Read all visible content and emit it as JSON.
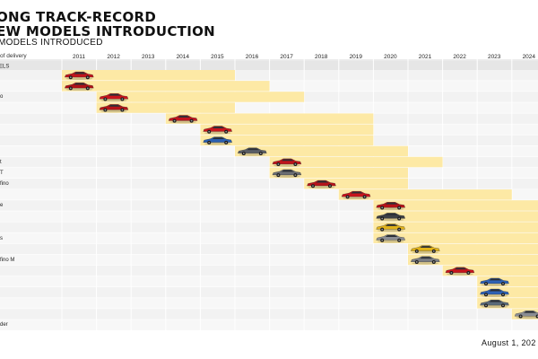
{
  "header": {
    "title_line1": "ONG TRACK-RECORD",
    "title_line2": "EW MODELS INTRODUCTION",
    "subtitle": "MODELS INTRODUCED",
    "delivery_label": "of delivery"
  },
  "years": [
    "2011",
    "2012",
    "2013",
    "2014",
    "2015",
    "2016",
    "2017",
    "2018",
    "2019",
    "2020",
    "2021",
    "2022",
    "2023",
    "2024"
  ],
  "section_label": "ELS",
  "rows": [
    {
      "label": "",
      "start": 2011,
      "end": 2015
    },
    {
      "label": "",
      "start": 2011,
      "end": 2016
    },
    {
      "label": "o",
      "start": 2012,
      "end": 2017
    },
    {
      "label": "",
      "start": 2012,
      "end": 2015
    },
    {
      "label": "",
      "start": 2014,
      "end": 2019
    },
    {
      "label": "",
      "start": 2015,
      "end": 2019
    },
    {
      "label": "",
      "start": 2015,
      "end": 2019
    },
    {
      "label": "",
      "start": 2016,
      "end": 2020
    },
    {
      "label": "t",
      "start": 2017,
      "end": 2021
    },
    {
      "label": "T",
      "start": 2017,
      "end": 2020
    },
    {
      "label": "fino",
      "start": 2018,
      "end": 2020
    },
    {
      "label": "",
      "start": 2019,
      "end": 2023
    },
    {
      "label": "e",
      "start": 2020,
      "end": 2024
    },
    {
      "label": "",
      "start": 2020,
      "end": 2024
    },
    {
      "label": "",
      "start": 2020,
      "end": 2024
    },
    {
      "label": "s",
      "start": 2020,
      "end": 2024
    },
    {
      "label": "",
      "start": 2021,
      "end": 2024
    },
    {
      "label": "fino M",
      "start": 2021,
      "end": 2024
    },
    {
      "label": "",
      "start": 2022,
      "end": 2024
    },
    {
      "label": "",
      "start": 2023,
      "end": 2024
    },
    {
      "label": "",
      "start": 2023,
      "end": 2024
    },
    {
      "label": "",
      "start": 2023,
      "end": 2024
    },
    {
      "label": "",
      "start": 2024,
      "end": 2024
    },
    {
      "label": "der",
      "start": null,
      "end": null
    }
  ],
  "cars": [
    {
      "row": 0,
      "year": 2011,
      "color": "#c0141c"
    },
    {
      "row": 1,
      "year": 2011,
      "color": "#b01218"
    },
    {
      "row": 2,
      "year": 2012,
      "color": "#c8151d"
    },
    {
      "row": 3,
      "year": 2012,
      "color": "#b51319"
    },
    {
      "row": 4,
      "year": 2014,
      "color": "#c01520"
    },
    {
      "row": 5,
      "year": 2015,
      "color": "#c8141c"
    },
    {
      "row": 6,
      "year": 2015,
      "color": "#2a5fb0"
    },
    {
      "row": 7,
      "year": 2016,
      "color": "#5a5e66"
    },
    {
      "row": 8,
      "year": 2017,
      "color": "#c0141c"
    },
    {
      "row": 9,
      "year": 2017,
      "color": "#6b6e74"
    },
    {
      "row": 10,
      "year": 2018,
      "color": "#b8141c"
    },
    {
      "row": 11,
      "year": 2019,
      "color": "#c8141c"
    },
    {
      "row": 12,
      "year": 2020,
      "color": "#b51218"
    },
    {
      "row": 13,
      "year": 2020,
      "color": "#3c3f45"
    },
    {
      "row": 14,
      "year": 2020,
      "color": "#e0b21a"
    },
    {
      "row": 15,
      "year": 2020,
      "color": "#8a8d93"
    },
    {
      "row": 16,
      "year": 2021,
      "color": "#e0b21a"
    },
    {
      "row": 17,
      "year": 2021,
      "color": "#7a7d83"
    },
    {
      "row": 18,
      "year": 2022,
      "color": "#c8141c"
    },
    {
      "row": 19,
      "year": 2023,
      "color": "#2f62b5"
    },
    {
      "row": 20,
      "year": 2023,
      "color": "#2f62b5"
    },
    {
      "row": 21,
      "year": 2023,
      "color": "#5a6a7a"
    },
    {
      "row": 22,
      "year": 2024,
      "color": "#8a8d93"
    }
  ],
  "colors": {
    "bar": "#fde9a5",
    "row_bg": "#f2f2f2",
    "header_bg": "#e6e6e6"
  },
  "footer": {
    "date": "August 1, 202"
  }
}
